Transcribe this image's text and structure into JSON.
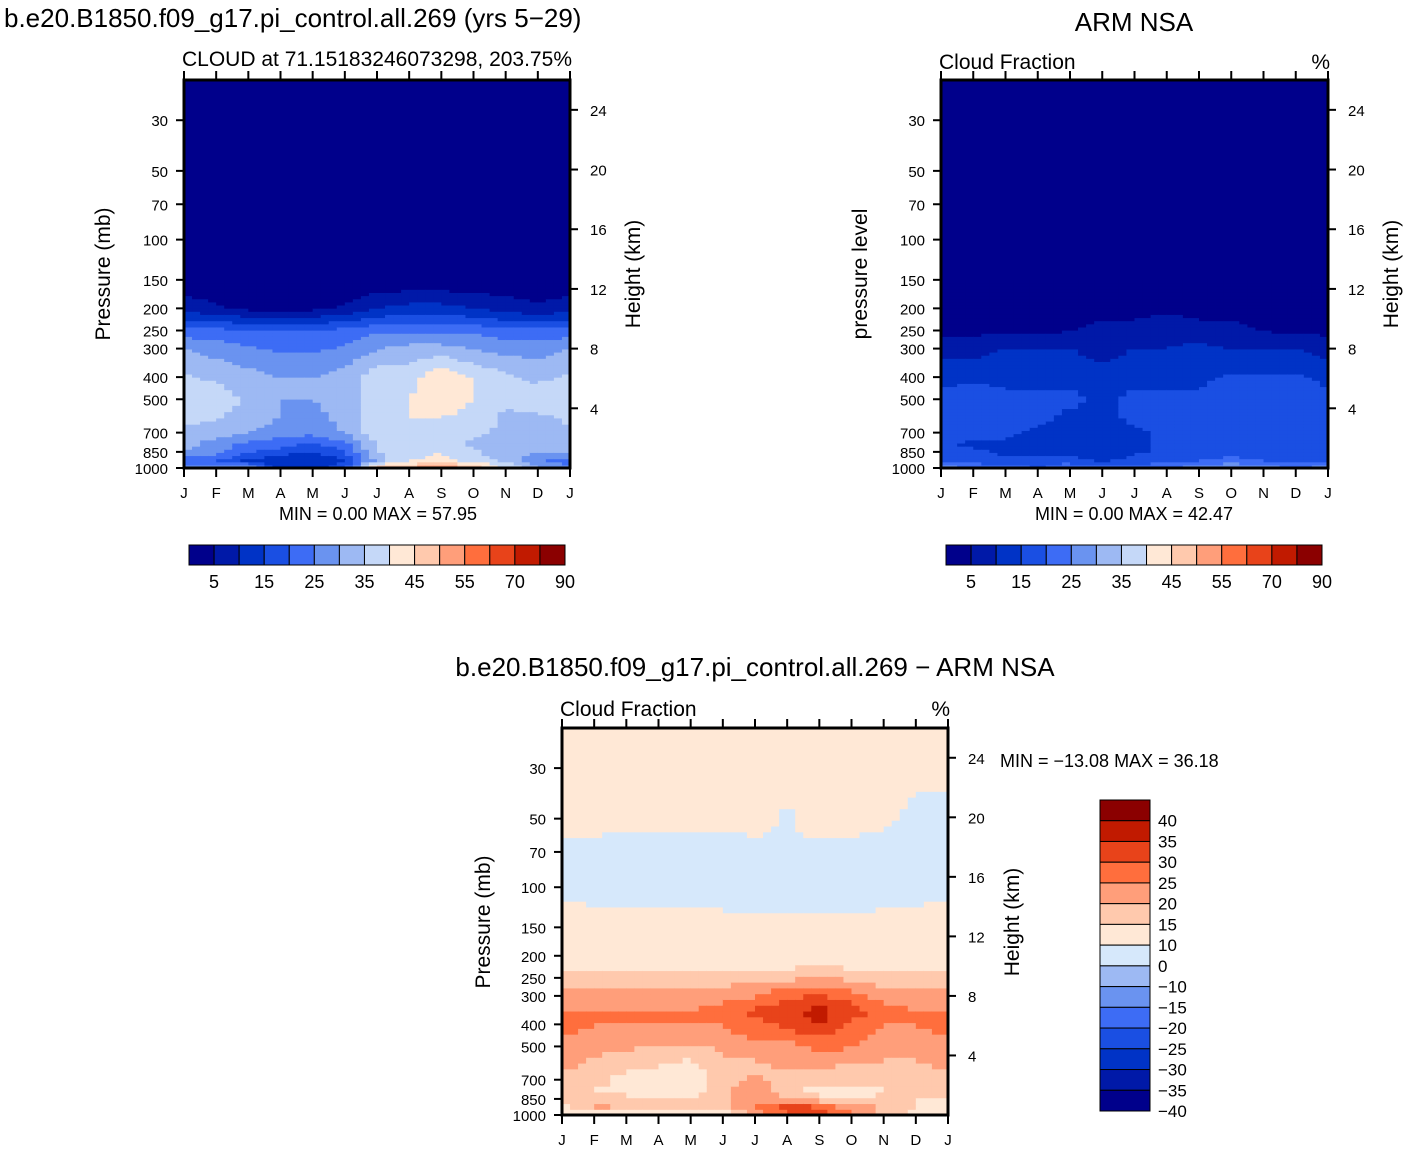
{
  "page": {
    "model_case": "b.e20.B1850.f09_g17.pi_control.all.269 (yrs 5−29)",
    "obs_title": "ARM NSA",
    "diff_title": "b.e20.B1850.f09_g17.pi_control.all.269 − ARM NSA"
  },
  "colors": {
    "cloud_fill": [
      "#00008b",
      "#0019a8",
      "#0033c6",
      "#1a4fe3",
      "#3d6cf5",
      "#6a93f0",
      "#9db9f3",
      "#c5d8f8",
      "#ffe8d6",
      "#ffc9ad",
      "#ff9e7a",
      "#ff6e3d",
      "#e8431a",
      "#c11a00",
      "#8b0000"
    ],
    "diff_fill": [
      "#00008b",
      "#0019a8",
      "#0033c6",
      "#1a4fe3",
      "#3d6cf5",
      "#6a93f0",
      "#9db9f3",
      "#d6e8fb",
      "#ffe8d6",
      "#ffc9ad",
      "#ff9e7a",
      "#ff6e3d",
      "#e8431a",
      "#c11a00",
      "#8b0000"
    ]
  },
  "chart_data": [
    {
      "type": "heatmap",
      "title": "CLOUD  at 71.15183246073298, 203.75",
      "units": "%",
      "xlabel": "",
      "ylabel": "Pressure (mb)",
      "ylabel_right": "Height (km)",
      "x": [
        "J",
        "F",
        "M",
        "A",
        "M",
        "J",
        "J",
        "A",
        "S",
        "O",
        "N",
        "D",
        "J"
      ],
      "y_ticks": [
        30,
        50,
        70,
        100,
        150,
        200,
        250,
        300,
        400,
        500,
        700,
        850,
        1000
      ],
      "y_right_ticks": [
        24,
        20,
        16,
        12,
        8,
        4
      ],
      "min_max_text": "MIN =     0.00  MAX =     57.95",
      "min": 0.0,
      "max": 57.95,
      "colorbar_labels": [
        "5",
        "15",
        "25",
        "35",
        "45",
        "55",
        "70",
        "90"
      ],
      "profile_levels_mb": [
        1000,
        925,
        850,
        775,
        700,
        600,
        500,
        400,
        300,
        250,
        200,
        150
      ],
      "months_values": [
        [
          26,
          32,
          30,
          14,
          12,
          20,
          48,
          52,
          54,
          50,
          40,
          30,
          26
        ],
        [
          22,
          20,
          14,
          10,
          10,
          14,
          32,
          40,
          42,
          38,
          34,
          26,
          22
        ],
        [
          30,
          26,
          20,
          18,
          14,
          20,
          35,
          38,
          40,
          36,
          32,
          30,
          30
        ],
        [
          32,
          28,
          24,
          22,
          20,
          24,
          36,
          38,
          36,
          34,
          30,
          30,
          32
        ],
        [
          34,
          32,
          30,
          28,
          26,
          30,
          38,
          40,
          38,
          36,
          34,
          32,
          34
        ],
        [
          36,
          36,
          32,
          30,
          28,
          32,
          38,
          40,
          40,
          38,
          34,
          34,
          36
        ],
        [
          38,
          38,
          34,
          30,
          30,
          32,
          38,
          40,
          44,
          40,
          36,
          38,
          38
        ],
        [
          36,
          34,
          32,
          30,
          30,
          32,
          38,
          38,
          44,
          40,
          36,
          34,
          36
        ],
        [
          30,
          28,
          26,
          24,
          24,
          26,
          30,
          32,
          32,
          30,
          28,
          28,
          30
        ],
        [
          22,
          22,
          20,
          20,
          20,
          22,
          24,
          24,
          24,
          24,
          22,
          22,
          22
        ],
        [
          8,
          6,
          4,
          4,
          4,
          6,
          10,
          12,
          12,
          10,
          8,
          6,
          8
        ],
        [
          1,
          1,
          1,
          1,
          1,
          1,
          1,
          1,
          1,
          1,
          1,
          1,
          1
        ]
      ]
    },
    {
      "type": "heatmap",
      "title": "Cloud Fraction",
      "units": "%",
      "ylabel": "pressure level",
      "ylabel_right": "Height (km)",
      "x": [
        "J",
        "F",
        "M",
        "A",
        "M",
        "J",
        "J",
        "A",
        "S",
        "O",
        "N",
        "D",
        "J"
      ],
      "y_ticks": [
        30,
        50,
        70,
        100,
        150,
        200,
        250,
        300,
        400,
        500,
        700,
        850,
        1000
      ],
      "y_right_ticks": [
        24,
        20,
        16,
        12,
        8,
        4
      ],
      "min_max_text": "MIN =     0.00  MAX =     42.47",
      "min": 0.0,
      "max": 42.47,
      "colorbar_labels": [
        "5",
        "15",
        "25",
        "35",
        "45",
        "55",
        "70",
        "90"
      ],
      "profile_levels_mb": [
        1000,
        925,
        850,
        775,
        700,
        600,
        500,
        400,
        300,
        250,
        200,
        150
      ],
      "months_values": [
        [
          28,
          24,
          22,
          20,
          24,
          22,
          22,
          24,
          28,
          32,
          28,
          24,
          28
        ],
        [
          20,
          18,
          16,
          18,
          18,
          14,
          18,
          18,
          20,
          22,
          20,
          18,
          20
        ],
        [
          16,
          16,
          14,
          14,
          12,
          10,
          14,
          16,
          18,
          18,
          18,
          16,
          16
        ],
        [
          16,
          14,
          14,
          14,
          12,
          12,
          14,
          16,
          18,
          18,
          18,
          16,
          16
        ],
        [
          18,
          18,
          16,
          14,
          14,
          12,
          14,
          16,
          18,
          18,
          18,
          18,
          18
        ],
        [
          18,
          18,
          16,
          16,
          14,
          14,
          16,
          16,
          18,
          18,
          18,
          18,
          18
        ],
        [
          16,
          18,
          16,
          16,
          16,
          14,
          16,
          16,
          16,
          18,
          18,
          18,
          16
        ],
        [
          14,
          14,
          14,
          14,
          14,
          12,
          14,
          14,
          14,
          16,
          16,
          16,
          14
        ],
        [
          8,
          8,
          10,
          10,
          10,
          8,
          10,
          10,
          12,
          10,
          10,
          10,
          8
        ],
        [
          4,
          4,
          4,
          4,
          5,
          6,
          6,
          8,
          6,
          6,
          5,
          4,
          4
        ],
        [
          3,
          3,
          3,
          3,
          3,
          4,
          4,
          4,
          4,
          4,
          3,
          3,
          3
        ],
        [
          2,
          2,
          2,
          2,
          2,
          2,
          2,
          2,
          2,
          2,
          2,
          2,
          2
        ]
      ]
    },
    {
      "type": "heatmap",
      "title": "Cloud Fraction",
      "units": "%",
      "ylabel": "Pressure (mb)",
      "ylabel_right": "Height (km)",
      "x": [
        "J",
        "F",
        "M",
        "A",
        "M",
        "J",
        "J",
        "A",
        "S",
        "O",
        "N",
        "D",
        "J"
      ],
      "y_ticks": [
        30,
        50,
        70,
        100,
        150,
        200,
        250,
        300,
        400,
        500,
        700,
        850,
        1000
      ],
      "y_right_ticks": [
        24,
        20,
        16,
        12,
        8,
        4
      ],
      "min_max_text": "MIN =  −13.08  MAX =    36.18",
      "min": -13.08,
      "max": 36.18,
      "colorbar_labels": [
        "40",
        "35",
        "30",
        "25",
        "20",
        "15",
        "10",
        "0",
        "−10",
        "−15",
        "−20",
        "−25",
        "−30",
        "−35",
        "−40"
      ],
      "profile_levels_mb": [
        1000,
        925,
        850,
        775,
        700,
        600,
        500,
        400,
        350,
        300,
        250,
        200,
        150,
        100,
        70,
        50,
        30
      ],
      "months_values": [
        [
          2,
          4,
          3,
          -2,
          -1,
          2,
          16,
          24,
          28,
          20,
          12,
          8,
          2
        ],
        [
          8,
          16,
          14,
          10,
          12,
          12,
          20,
          28,
          26,
          18,
          14,
          10,
          8
        ],
        [
          10,
          14,
          12,
          10,
          12,
          14,
          18,
          16,
          12,
          10,
          12,
          10,
          10
        ],
        [
          12,
          10,
          8,
          6,
          6,
          14,
          20,
          12,
          8,
          6,
          10,
          12,
          12
        ],
        [
          14,
          12,
          8,
          8,
          6,
          12,
          16,
          12,
          14,
          12,
          14,
          14,
          14
        ],
        [
          16,
          14,
          12,
          10,
          8,
          14,
          14,
          16,
          16,
          14,
          14,
          14,
          16
        ],
        [
          18,
          16,
          16,
          14,
          14,
          16,
          18,
          18,
          22,
          20,
          18,
          18,
          18
        ],
        [
          22,
          20,
          20,
          20,
          20,
          20,
          24,
          26,
          30,
          24,
          20,
          20,
          22
        ],
        [
          20,
          20,
          20,
          20,
          20,
          22,
          26,
          28,
          32,
          28,
          22,
          20,
          20
        ],
        [
          18,
          18,
          18,
          18,
          18,
          18,
          20,
          24,
          26,
          22,
          18,
          18,
          18
        ],
        [
          12,
          12,
          12,
          12,
          12,
          12,
          14,
          14,
          16,
          14,
          12,
          12,
          12
        ],
        [
          5,
          5,
          5,
          5,
          5,
          5,
          5,
          5,
          5,
          5,
          5,
          5,
          5
        ],
        [
          4,
          4,
          4,
          4,
          4,
          3,
          2,
          2,
          2,
          2,
          3,
          4,
          4
        ],
        [
          -2,
          -3,
          -3,
          -3,
          -4,
          -4,
          -4,
          -4,
          -4,
          -4,
          -3,
          -3,
          -2
        ],
        [
          -2,
          -4,
          -5,
          -6,
          -6,
          -6,
          -4,
          -1,
          -2,
          -4,
          -4,
          -3,
          -2
        ],
        [
          2,
          4,
          4,
          4,
          4,
          4,
          4,
          -1,
          4,
          4,
          2,
          -2,
          -2
        ],
        [
          2,
          2,
          2,
          2,
          2,
          2,
          2,
          2,
          2,
          2,
          2,
          2,
          2
        ]
      ]
    }
  ]
}
